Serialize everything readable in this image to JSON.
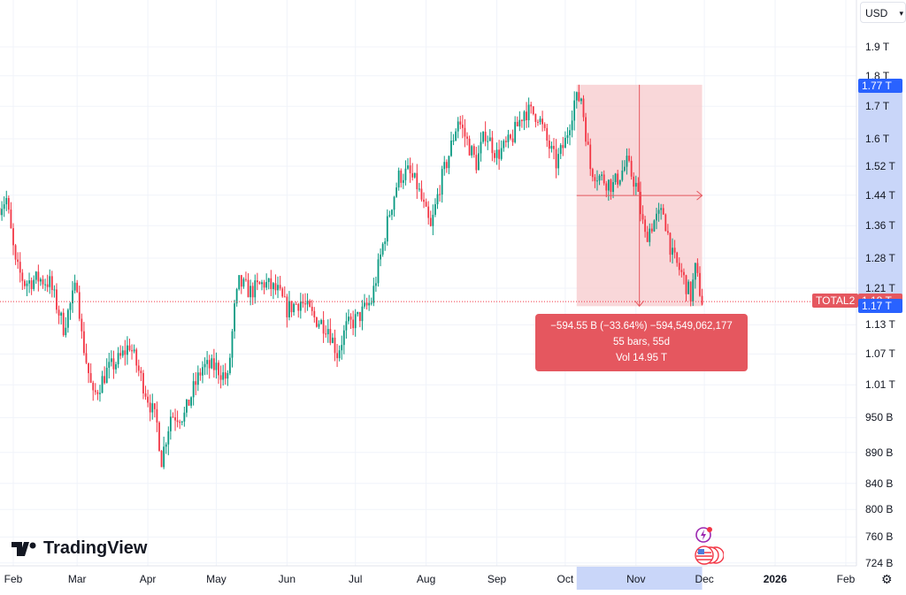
{
  "symbol": "TOTAL2",
  "currency": "USD",
  "logo_text": "TradingView",
  "colors": {
    "up": "#089981",
    "down": "#f23645",
    "measure_fill": "#f7c9cc",
    "measure_line": "#e5575f",
    "axis_highlight": "#c9d6f9",
    "price_tag_blue": "#2962ff",
    "price_tag_red": "#e5575f"
  },
  "price_axis": {
    "labels": [
      "1.9 T",
      "1.8 T",
      "1.7 T",
      "1.6 T",
      "1.52 T",
      "1.44 T",
      "1.36 T",
      "1.28 T",
      "1.21 T",
      "1.13 T",
      "1.07 T",
      "1.01 T",
      "950 B",
      "890 B",
      "840 B",
      "800 B",
      "760 B",
      "724 B"
    ],
    "scale": "log",
    "range_T": [
      0.724,
      1.9
    ],
    "high_tag": "1.77 T",
    "low_tag": "1.17 T",
    "last_price_tag": "1.18 T"
  },
  "time_axis": {
    "labels": [
      {
        "text": "Feb",
        "date": "2025-02-01",
        "bold": false
      },
      {
        "text": "Mar",
        "date": "2025-03-01",
        "bold": false
      },
      {
        "text": "Apr",
        "date": "2025-04-01",
        "bold": false
      },
      {
        "text": "May",
        "date": "2025-05-01",
        "bold": false
      },
      {
        "text": "Jun",
        "date": "2025-06-01",
        "bold": false
      },
      {
        "text": "Jul",
        "date": "2025-07-01",
        "bold": false
      },
      {
        "text": "Aug",
        "date": "2025-08-01",
        "bold": false
      },
      {
        "text": "Sep",
        "date": "2025-09-01",
        "bold": false
      },
      {
        "text": "Oct",
        "date": "2025-10-01",
        "bold": false
      },
      {
        "text": "Nov",
        "date": "2025-11-01",
        "bold": false
      },
      {
        "text": "Dec",
        "date": "2025-12-01",
        "bold": false
      },
      {
        "text": "2026",
        "date": "2026-01-01",
        "bold": true
      },
      {
        "text": "Feb",
        "date": "2026-02-01",
        "bold": false
      }
    ]
  },
  "measure": {
    "line1": "−594.55 B (−33.64%) −594,549,062,177",
    "line2": "55 bars, 55d",
    "line3": "Vol 14.95 T",
    "start_date": "2025-10-06",
    "end_date": "2025-11-30",
    "high_T": 1.77,
    "low_T": 1.17
  },
  "chart_data": {
    "type": "candlestick",
    "scale": "log",
    "ylim_T": [
      0.724,
      1.9
    ],
    "xlim": [
      "2025-01-26",
      "2026-02-20"
    ],
    "grid": true,
    "approx_closes_T": [
      [
        "2025-01-26",
        1.406
      ],
      [
        "2025-01-30",
        1.43
      ],
      [
        "2025-02-03",
        1.263
      ],
      [
        "2025-02-07",
        1.222
      ],
      [
        "2025-02-13",
        1.232
      ],
      [
        "2025-02-18",
        1.222
      ],
      [
        "2025-02-24",
        1.125
      ],
      [
        "2025-03-02",
        1.222
      ],
      [
        "2025-03-04",
        1.107
      ],
      [
        "2025-03-09",
        0.986
      ],
      [
        "2025-03-15",
        1.036
      ],
      [
        "2025-03-21",
        1.062
      ],
      [
        "2025-03-25",
        1.089
      ],
      [
        "2025-03-29",
        1.036
      ],
      [
        "2025-04-02",
        0.986
      ],
      [
        "2025-04-06",
        0.938
      ],
      [
        "2025-04-08",
        0.878
      ],
      [
        "2025-04-12",
        0.954
      ],
      [
        "2025-04-18",
        0.954
      ],
      [
        "2025-04-22",
        1.002
      ],
      [
        "2025-04-26",
        1.044
      ],
      [
        "2025-05-02",
        1.044
      ],
      [
        "2025-05-07",
        1.019
      ],
      [
        "2025-05-10",
        1.163
      ],
      [
        "2025-05-12",
        1.222
      ],
      [
        "2025-05-17",
        1.202
      ],
      [
        "2025-05-23",
        1.222
      ],
      [
        "2025-05-29",
        1.202
      ],
      [
        "2025-06-02",
        1.163
      ],
      [
        "2025-06-08",
        1.182
      ],
      [
        "2025-06-14",
        1.144
      ],
      [
        "2025-06-20",
        1.125
      ],
      [
        "2025-06-24",
        1.071
      ],
      [
        "2025-06-28",
        1.125
      ],
      [
        "2025-07-03",
        1.144
      ],
      [
        "2025-07-09",
        1.182
      ],
      [
        "2025-07-13",
        1.284
      ],
      [
        "2025-07-17",
        1.395
      ],
      [
        "2025-07-21",
        1.49
      ],
      [
        "2025-07-25",
        1.503
      ],
      [
        "2025-07-29",
        1.466
      ],
      [
        "2025-08-04",
        1.35
      ],
      [
        "2025-08-08",
        1.466
      ],
      [
        "2025-08-12",
        1.553
      ],
      [
        "2025-08-16",
        1.66
      ],
      [
        "2025-08-20",
        1.592
      ],
      [
        "2025-08-24",
        1.528
      ],
      [
        "2025-08-28",
        1.619
      ],
      [
        "2025-09-02",
        1.553
      ],
      [
        "2025-09-08",
        1.592
      ],
      [
        "2025-09-14",
        1.687
      ],
      [
        "2025-09-20",
        1.673
      ],
      [
        "2025-09-24",
        1.592
      ],
      [
        "2025-09-28",
        1.528
      ],
      [
        "2025-10-02",
        1.592
      ],
      [
        "2025-10-06",
        1.716
      ],
      [
        "2025-10-09",
        1.73
      ],
      [
        "2025-10-13",
        1.515
      ],
      [
        "2025-10-17",
        1.49
      ],
      [
        "2025-10-23",
        1.466
      ],
      [
        "2025-10-29",
        1.528
      ],
      [
        "2025-11-02",
        1.466
      ],
      [
        "2025-11-06",
        1.332
      ],
      [
        "2025-11-10",
        1.372
      ],
      [
        "2025-11-14",
        1.395
      ],
      [
        "2025-11-18",
        1.284
      ],
      [
        "2025-11-22",
        1.243
      ],
      [
        "2025-11-26",
        1.192
      ],
      [
        "2025-11-28",
        1.253
      ],
      [
        "2025-12-01",
        1.182
      ]
    ]
  }
}
